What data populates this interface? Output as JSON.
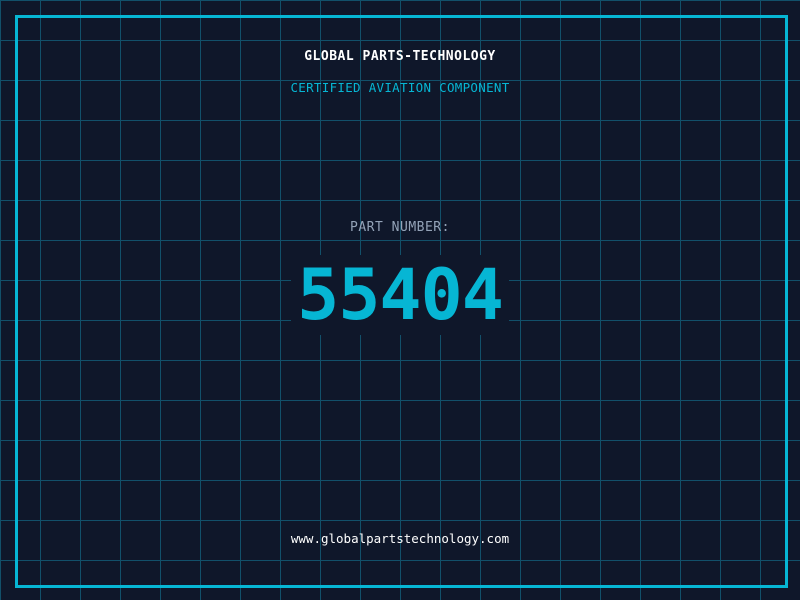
{
  "colors": {
    "background": "#0f172a",
    "grid": "#12506a",
    "accent": "#06b6d4",
    "label": "#94a3b8",
    "text": "#ffffff"
  },
  "header": {
    "company": "GLOBAL PARTS-TECHNOLOGY",
    "subtitle": "CERTIFIED AVIATION COMPONENT"
  },
  "part": {
    "label": "PART NUMBER:",
    "number": "55404"
  },
  "footer": {
    "url": "www.globalpartstechnology.com"
  }
}
